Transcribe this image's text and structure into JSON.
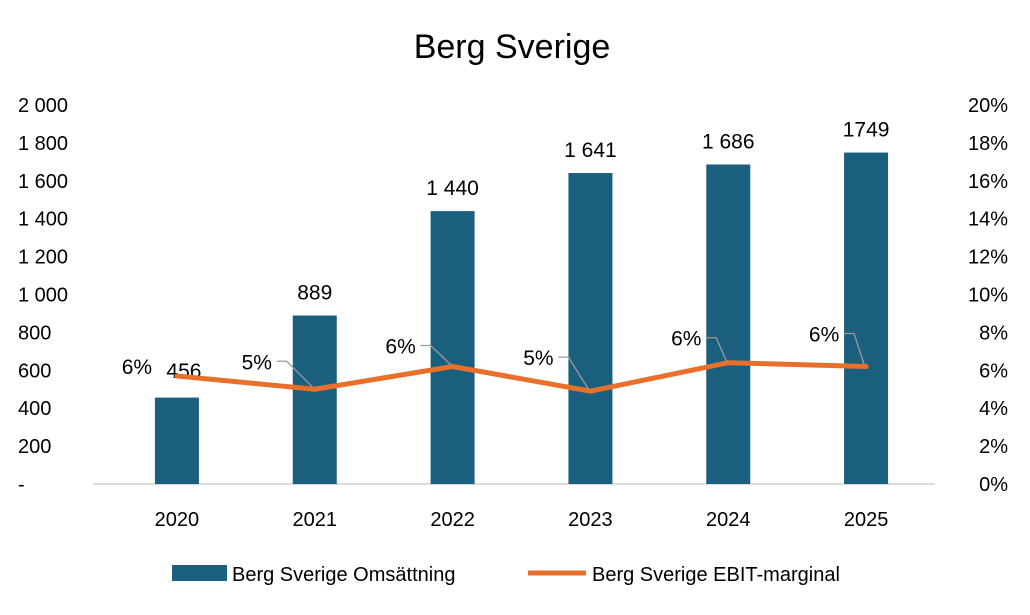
{
  "chart_data": {
    "type": "bar",
    "title": "Berg Sverige",
    "categories": [
      "2020",
      "2021",
      "2022",
      "2023",
      "2024",
      "2025"
    ],
    "series": [
      {
        "name": "Berg Sverige Omsättning",
        "type": "bar",
        "axis": "left",
        "values": [
          456,
          889,
          1440,
          1641,
          1686,
          1749
        ],
        "labels": [
          "456",
          "889",
          "1 440",
          "1 641",
          "1 686",
          "1749"
        ],
        "color": "#1a5f7e"
      },
      {
        "name": "Berg Sverige EBIT-marginal",
        "type": "line",
        "axis": "right",
        "values": [
          0.057,
          0.05,
          0.062,
          0.049,
          0.064,
          0.062
        ],
        "labels": [
          "6%",
          "5%",
          "6%",
          "5%",
          "6%",
          "6%"
        ],
        "color": "#e8702a"
      }
    ],
    "y_left": {
      "ylim": [
        0,
        2000
      ],
      "ticks": [
        0,
        200,
        400,
        600,
        800,
        1000,
        1200,
        1400,
        1600,
        1800,
        2000
      ],
      "tick_labels": [
        "-",
        "200",
        "400",
        "600",
        "800",
        "1 000",
        "1 200",
        "1 400",
        "1 600",
        "1 800",
        "2 000"
      ]
    },
    "y_right": {
      "ylim": [
        0,
        0.2
      ],
      "ticks": [
        0,
        0.02,
        0.04,
        0.06,
        0.08,
        0.1,
        0.12,
        0.14,
        0.16,
        0.18,
        0.2
      ],
      "tick_labels": [
        "0%",
        "2%",
        "4%",
        "6%",
        "8%",
        "10%",
        "12%",
        "14%",
        "16%",
        "18%",
        "20%"
      ]
    },
    "grid": false,
    "legend_position": "bottom"
  }
}
